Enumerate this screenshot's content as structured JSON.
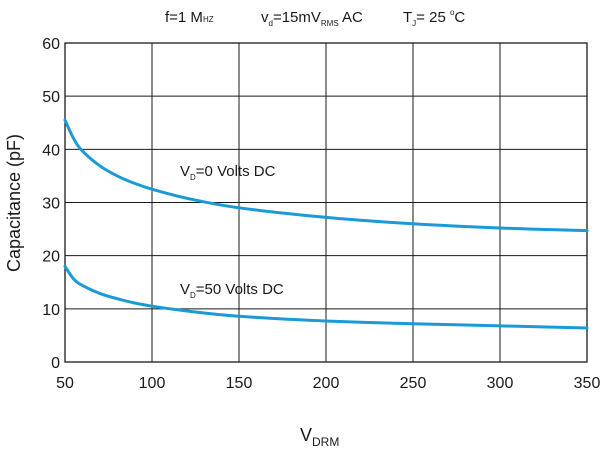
{
  "chart_data": {
    "type": "line",
    "conditions": [
      {
        "prefix": "f=1 M",
        "sub": "HZ",
        "suffix": ""
      },
      {
        "prefix": "v",
        "sub": "d",
        "mid": "=15mV",
        "sub2": "RMS",
        "suffix": " AC"
      },
      {
        "prefix": "T",
        "sub": "J",
        "mid": "= 25 ",
        "sup": "o",
        "suffix": "C"
      }
    ],
    "xlabel": {
      "main": "V",
      "sub": "DRM"
    },
    "ylabel": "Capacitance (pF)",
    "xlim": [
      50,
      350
    ],
    "ylim": [
      0,
      60
    ],
    "xticks": [
      50,
      100,
      150,
      200,
      250,
      300,
      350
    ],
    "yticks": [
      0,
      10,
      20,
      30,
      40,
      50,
      60
    ],
    "grid": true,
    "series_color": "#1a9ad6",
    "series": [
      {
        "name": "V_D=0 Volts DC",
        "label": {
          "main": "V",
          "sub": "D",
          "rest": "=0 Volts DC"
        },
        "x": [
          50,
          55,
          60,
          70,
          80,
          90,
          100,
          120,
          150,
          200,
          250,
          300,
          350
        ],
        "values": [
          45.5,
          42.0,
          39.7,
          36.9,
          35.0,
          33.6,
          32.5,
          30.8,
          29.0,
          27.2,
          26.0,
          25.2,
          24.7
        ]
      },
      {
        "name": "V_D=50 Volts DC",
        "label": {
          "main": "V",
          "sub": "D",
          "rest": "=50 Volts DC"
        },
        "x": [
          50,
          55,
          60,
          70,
          80,
          90,
          100,
          120,
          150,
          200,
          250,
          300,
          350
        ],
        "values": [
          18.0,
          15.6,
          14.4,
          12.9,
          11.9,
          11.1,
          10.5,
          9.6,
          8.6,
          7.7,
          7.2,
          6.8,
          6.4
        ]
      }
    ]
  }
}
